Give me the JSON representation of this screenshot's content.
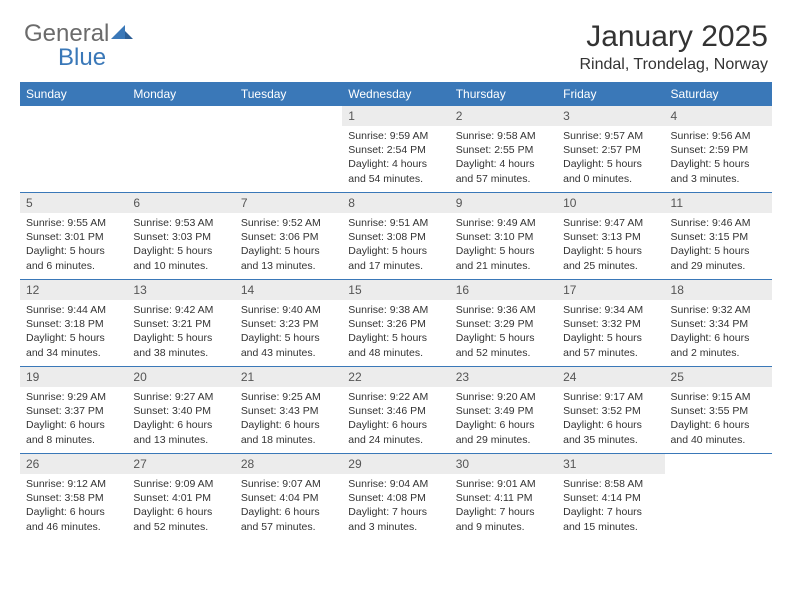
{
  "logo": {
    "general": "General",
    "blue": "Blue",
    "tri_color": "#3a78b8"
  },
  "header": {
    "title": "January 2025",
    "location": "Rindal, Trondelag, Norway"
  },
  "colors": {
    "header_bg": "#3a78b8",
    "header_fg": "#ffffff",
    "daynum_bg": "#ececec",
    "border": "#3a78b8",
    "text": "#333333"
  },
  "weekdays": [
    "Sunday",
    "Monday",
    "Tuesday",
    "Wednesday",
    "Thursday",
    "Friday",
    "Saturday"
  ],
  "weeks": [
    [
      null,
      null,
      null,
      {
        "n": "1",
        "sr": "9:59 AM",
        "ss": "2:54 PM",
        "dl": "4 hours and 54 minutes."
      },
      {
        "n": "2",
        "sr": "9:58 AM",
        "ss": "2:55 PM",
        "dl": "4 hours and 57 minutes."
      },
      {
        "n": "3",
        "sr": "9:57 AM",
        "ss": "2:57 PM",
        "dl": "5 hours and 0 minutes."
      },
      {
        "n": "4",
        "sr": "9:56 AM",
        "ss": "2:59 PM",
        "dl": "5 hours and 3 minutes."
      }
    ],
    [
      {
        "n": "5",
        "sr": "9:55 AM",
        "ss": "3:01 PM",
        "dl": "5 hours and 6 minutes."
      },
      {
        "n": "6",
        "sr": "9:53 AM",
        "ss": "3:03 PM",
        "dl": "5 hours and 10 minutes."
      },
      {
        "n": "7",
        "sr": "9:52 AM",
        "ss": "3:06 PM",
        "dl": "5 hours and 13 minutes."
      },
      {
        "n": "8",
        "sr": "9:51 AM",
        "ss": "3:08 PM",
        "dl": "5 hours and 17 minutes."
      },
      {
        "n": "9",
        "sr": "9:49 AM",
        "ss": "3:10 PM",
        "dl": "5 hours and 21 minutes."
      },
      {
        "n": "10",
        "sr": "9:47 AM",
        "ss": "3:13 PM",
        "dl": "5 hours and 25 minutes."
      },
      {
        "n": "11",
        "sr": "9:46 AM",
        "ss": "3:15 PM",
        "dl": "5 hours and 29 minutes."
      }
    ],
    [
      {
        "n": "12",
        "sr": "9:44 AM",
        "ss": "3:18 PM",
        "dl": "5 hours and 34 minutes."
      },
      {
        "n": "13",
        "sr": "9:42 AM",
        "ss": "3:21 PM",
        "dl": "5 hours and 38 minutes."
      },
      {
        "n": "14",
        "sr": "9:40 AM",
        "ss": "3:23 PM",
        "dl": "5 hours and 43 minutes."
      },
      {
        "n": "15",
        "sr": "9:38 AM",
        "ss": "3:26 PM",
        "dl": "5 hours and 48 minutes."
      },
      {
        "n": "16",
        "sr": "9:36 AM",
        "ss": "3:29 PM",
        "dl": "5 hours and 52 minutes."
      },
      {
        "n": "17",
        "sr": "9:34 AM",
        "ss": "3:32 PM",
        "dl": "5 hours and 57 minutes."
      },
      {
        "n": "18",
        "sr": "9:32 AM",
        "ss": "3:34 PM",
        "dl": "6 hours and 2 minutes."
      }
    ],
    [
      {
        "n": "19",
        "sr": "9:29 AM",
        "ss": "3:37 PM",
        "dl": "6 hours and 8 minutes."
      },
      {
        "n": "20",
        "sr": "9:27 AM",
        "ss": "3:40 PM",
        "dl": "6 hours and 13 minutes."
      },
      {
        "n": "21",
        "sr": "9:25 AM",
        "ss": "3:43 PM",
        "dl": "6 hours and 18 minutes."
      },
      {
        "n": "22",
        "sr": "9:22 AM",
        "ss": "3:46 PM",
        "dl": "6 hours and 24 minutes."
      },
      {
        "n": "23",
        "sr": "9:20 AM",
        "ss": "3:49 PM",
        "dl": "6 hours and 29 minutes."
      },
      {
        "n": "24",
        "sr": "9:17 AM",
        "ss": "3:52 PM",
        "dl": "6 hours and 35 minutes."
      },
      {
        "n": "25",
        "sr": "9:15 AM",
        "ss": "3:55 PM",
        "dl": "6 hours and 40 minutes."
      }
    ],
    [
      {
        "n": "26",
        "sr": "9:12 AM",
        "ss": "3:58 PM",
        "dl": "6 hours and 46 minutes."
      },
      {
        "n": "27",
        "sr": "9:09 AM",
        "ss": "4:01 PM",
        "dl": "6 hours and 52 minutes."
      },
      {
        "n": "28",
        "sr": "9:07 AM",
        "ss": "4:04 PM",
        "dl": "6 hours and 57 minutes."
      },
      {
        "n": "29",
        "sr": "9:04 AM",
        "ss": "4:08 PM",
        "dl": "7 hours and 3 minutes."
      },
      {
        "n": "30",
        "sr": "9:01 AM",
        "ss": "4:11 PM",
        "dl": "7 hours and 9 minutes."
      },
      {
        "n": "31",
        "sr": "8:58 AM",
        "ss": "4:14 PM",
        "dl": "7 hours and 15 minutes."
      },
      null
    ]
  ],
  "labels": {
    "sunrise": "Sunrise:",
    "sunset": "Sunset:",
    "daylight": "Daylight:"
  }
}
